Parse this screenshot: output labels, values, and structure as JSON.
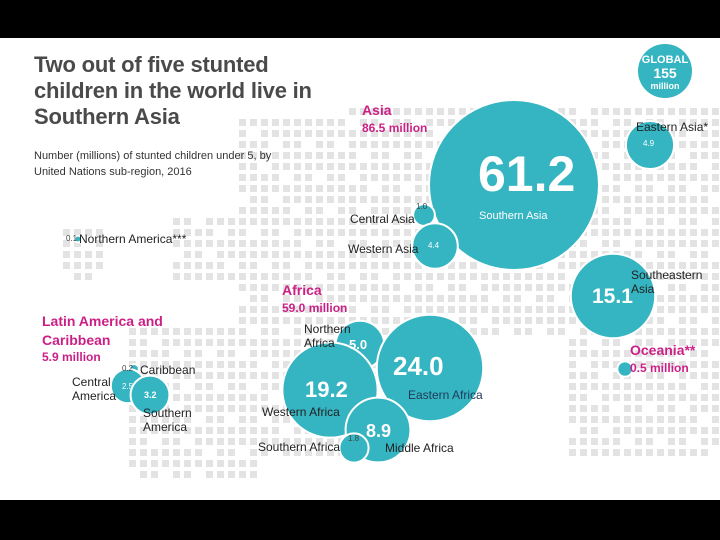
{
  "title": "Two out of five stunted children in the world live in Southern Asia",
  "subtitle": "Number (millions) of stunted children under 5, by United Nations sub-region, 2016",
  "badge": {
    "line1": "GLOBAL",
    "line2": "155",
    "line3": "million"
  },
  "colors": {
    "bubble": "#35b4c1",
    "accent": "#cc1f86",
    "map_dot": "#e3e3e3"
  },
  "regions": {
    "asia": {
      "name": "Asia",
      "total": "86.5 million"
    },
    "africa": {
      "name": "Africa",
      "total": "59.0 million"
    },
    "latam": {
      "name": "Latin America and Caribbean",
      "total": "5.9 million"
    },
    "oceania": {
      "name": "Oceania**",
      "total": "0.5 million"
    }
  },
  "chart_data": {
    "type": "bubble",
    "title": "Two out of five stunted children in the world live in Southern Asia",
    "unit": "millions",
    "series": [
      {
        "id": "southern-asia",
        "name": "Southern Asia",
        "value": 61.2,
        "label": "61.2"
      },
      {
        "id": "eastern-asia",
        "name": "Eastern Asia*",
        "value": 4.9,
        "label": "4.9"
      },
      {
        "id": "central-asia",
        "name": "Central Asia",
        "value": 1.0,
        "label": "1.0"
      },
      {
        "id": "western-asia",
        "name": "Western Asia",
        "value": 4.4,
        "label": "4.4"
      },
      {
        "id": "southeastern-asia",
        "name": "Southeastern Asia",
        "value": 15.1,
        "label": "15.1"
      },
      {
        "id": "northern-america",
        "name": "Northern America***",
        "value": 0.1,
        "label": "0.1"
      },
      {
        "id": "northern-africa",
        "name": "Northern Africa",
        "value": 5.0,
        "label": "5.0"
      },
      {
        "id": "eastern-africa",
        "name": "Eastern Africa",
        "value": 24.0,
        "label": "24.0"
      },
      {
        "id": "western-africa",
        "name": "Western Africa",
        "value": 19.2,
        "label": "19.2"
      },
      {
        "id": "middle-africa",
        "name": "Middle Africa",
        "value": 8.9,
        "label": "8.9"
      },
      {
        "id": "southern-africa",
        "name": "Southern Africa",
        "value": 1.8,
        "label": "1.8"
      },
      {
        "id": "caribbean",
        "name": "Caribbean",
        "value": 0.2,
        "label": "0.2"
      },
      {
        "id": "central-america",
        "name": "Central America",
        "value": 2.5,
        "label": "2.5"
      },
      {
        "id": "southern-america",
        "name": "Southern America",
        "value": 3.2,
        "label": "3.2"
      },
      {
        "id": "oceania",
        "name": "Oceania**",
        "value": 0.5,
        "label": "0.5 million"
      }
    ]
  }
}
